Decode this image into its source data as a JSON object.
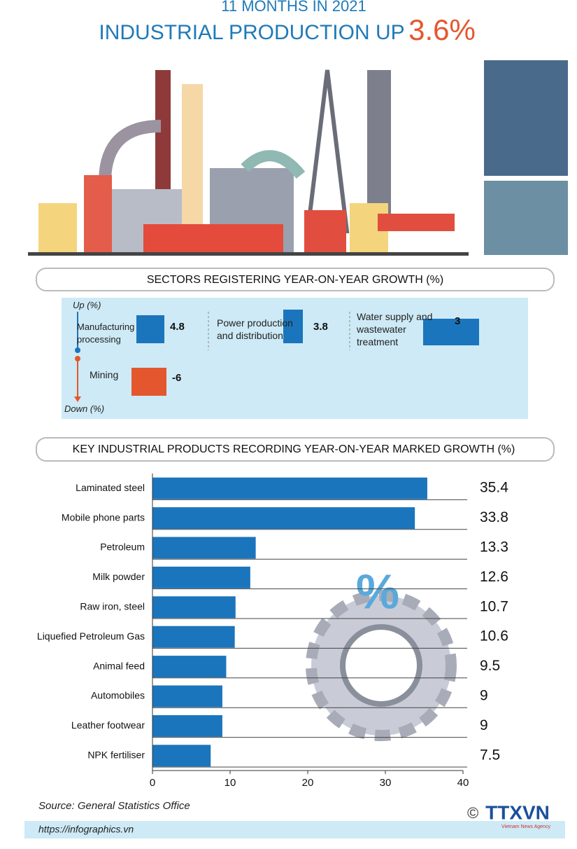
{
  "header": {
    "kicker": "11 MONTHS IN 2021",
    "title": "INDUSTRIAL PRODUCTION UP",
    "highlight": "3.6%"
  },
  "sectors": {
    "title": "SECTORS REGISTERING YEAR-ON-YEAR GROWTH (%)",
    "up_label": "Up (%)",
    "down_label": "Down (%)",
    "items": [
      {
        "name": "Manufacturing processing",
        "value": 4.8
      },
      {
        "name": "Power production and distribution",
        "value": 3.8
      },
      {
        "name": "Water supply and wastewater treatment",
        "value": 3
      },
      {
        "name": "Mining",
        "value": -6
      }
    ]
  },
  "chart_data": {
    "type": "bar",
    "orientation": "horizontal",
    "title": "KEY INDUSTRIAL PRODUCTS RECORDING YEAR-ON-YEAR MARKED GROWTH (%)",
    "categories": [
      "Laminated steel",
      "Mobile phone parts",
      "Petroleum",
      "Milk powder",
      "Raw iron, steel",
      "Liquefied Petroleum Gas",
      "Animal feed",
      "Automobiles",
      "Leather footwear",
      "NPK fertiliser"
    ],
    "values": [
      35.4,
      33.8,
      13.3,
      12.6,
      10.7,
      10.6,
      9.5,
      9,
      9,
      7.5
    ],
    "color": "#1b75bc",
    "xlim": [
      0,
      40
    ],
    "xticks": [
      0,
      10,
      20,
      30,
      40
    ]
  },
  "footer": {
    "source": "Source: General Statistics Office",
    "url": "https://infographics.vn",
    "copyright": "©",
    "logo": "TTXVN",
    "logo_sub": "Vietnam News Agency"
  }
}
